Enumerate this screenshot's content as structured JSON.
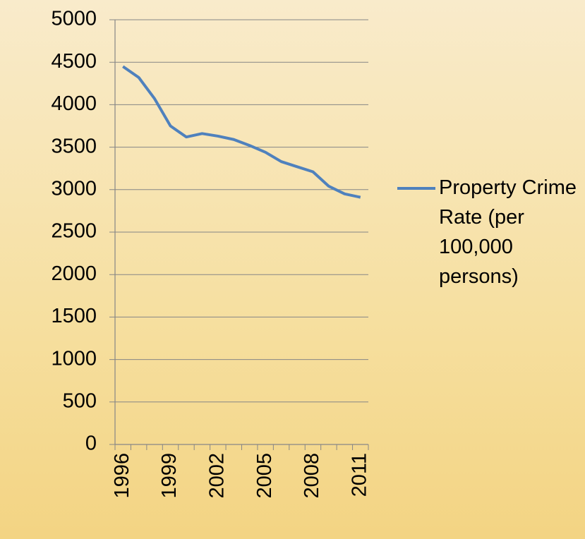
{
  "chart_data": {
    "type": "line",
    "categories": [
      "1996",
      null,
      null,
      "1999",
      null,
      null,
      "2002",
      null,
      null,
      "2005",
      null,
      null,
      "2008",
      null,
      null,
      "2011"
    ],
    "series": [
      {
        "name": "Property Crime Rate (per 100,000 persons)",
        "color": "#4f81bd",
        "values": [
          4450,
          4320,
          4070,
          3750,
          3620,
          3660,
          3630,
          3590,
          3520,
          3440,
          3330,
          3270,
          3210,
          3040,
          2950,
          2910
        ]
      }
    ],
    "ylim": [
      0,
      5000
    ],
    "yticks": [
      0,
      500,
      1000,
      1500,
      2000,
      2500,
      3000,
      3500,
      4000,
      4500,
      5000
    ],
    "grid": true,
    "legend": "right"
  }
}
